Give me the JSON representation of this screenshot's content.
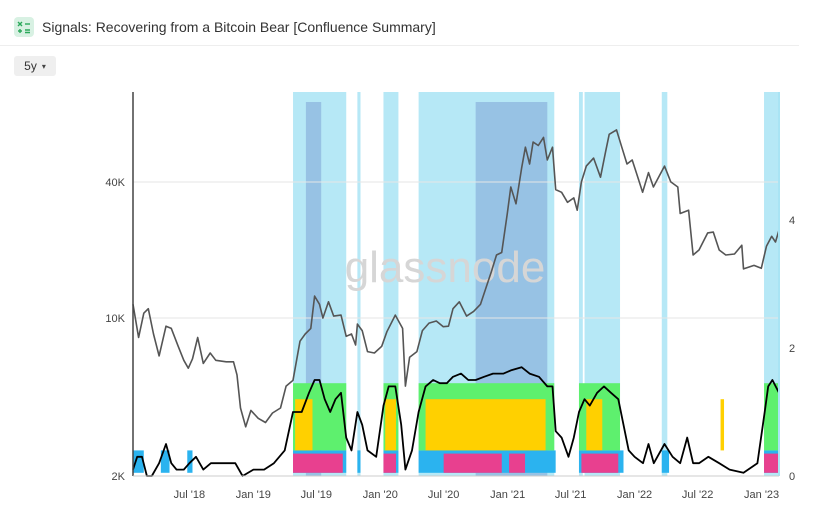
{
  "header": {
    "title": "Signals: Recovering from a Bitcoin Bear [Confluence Summary]",
    "icon": "signals-icon"
  },
  "controls": {
    "range_label": "5y",
    "range_caret": "▾"
  },
  "watermark": "glassnode",
  "chart_data": {
    "type": "line",
    "title": "",
    "x_range": [
      "2018-01-20",
      "2023-02-20"
    ],
    "left_axis": {
      "scale": "log",
      "ticks": [
        2000,
        10000,
        40000
      ],
      "tick_labels": [
        "2K",
        "10K",
        "40K"
      ],
      "range": [
        2000,
        100000
      ]
    },
    "right_axis": {
      "ticks": [
        0,
        2,
        4
      ],
      "tick_labels": [
        "0",
        "2",
        "4"
      ],
      "range": [
        0,
        6
      ]
    },
    "x_ticks": [
      {
        "date": "2018-07-01",
        "label": "Jul '18"
      },
      {
        "date": "2019-01-01",
        "label": "Jan '19"
      },
      {
        "date": "2019-07-01",
        "label": "Jul '19"
      },
      {
        "date": "2020-01-01",
        "label": "Jan '20"
      },
      {
        "date": "2020-07-01",
        "label": "Jul '20"
      },
      {
        "date": "2021-01-01",
        "label": "Jan '21"
      },
      {
        "date": "2021-07-01",
        "label": "Jul '21"
      },
      {
        "date": "2022-01-01",
        "label": "Jan '22"
      },
      {
        "date": "2022-07-01",
        "label": "Jul '22"
      },
      {
        "date": "2023-01-01",
        "label": "Jan '23"
      }
    ],
    "colors": {
      "price_line": "#555555",
      "confluence_line": "#000000",
      "pos_regime": "#a9e4f4",
      "pos_strong": "#7ea3d6",
      "band_green": "#5ef06e",
      "band_yellow": "#ffd000",
      "band_blue": "#2bb3ef",
      "band_pink": "#e8408f"
    },
    "series": [
      {
        "axis": "left",
        "color": "#555555",
        "points": [
          [
            "2018-01-20",
            11500
          ],
          [
            "2018-02-05",
            8200
          ],
          [
            "2018-02-20",
            10500
          ],
          [
            "2018-03-05",
            11000
          ],
          [
            "2018-03-20",
            8500
          ],
          [
            "2018-04-05",
            6800
          ],
          [
            "2018-04-25",
            9200
          ],
          [
            "2018-05-10",
            9000
          ],
          [
            "2018-05-30",
            7500
          ],
          [
            "2018-06-15",
            6500
          ],
          [
            "2018-06-28",
            6000
          ],
          [
            "2018-07-10",
            6600
          ],
          [
            "2018-07-25",
            8200
          ],
          [
            "2018-08-10",
            6300
          ],
          [
            "2018-08-30",
            7000
          ],
          [
            "2018-09-15",
            6500
          ],
          [
            "2018-10-15",
            6400
          ],
          [
            "2018-11-05",
            6400
          ],
          [
            "2018-11-15",
            5600
          ],
          [
            "2018-11-25",
            4000
          ],
          [
            "2018-12-10",
            3300
          ],
          [
            "2018-12-25",
            3900
          ],
          [
            "2019-01-15",
            3600
          ],
          [
            "2019-02-05",
            3450
          ],
          [
            "2019-02-25",
            3800
          ],
          [
            "2019-03-20",
            4000
          ],
          [
            "2019-04-05",
            5000
          ],
          [
            "2019-04-25",
            5300
          ],
          [
            "2019-05-15",
            7900
          ],
          [
            "2019-05-30",
            8500
          ],
          [
            "2019-06-15",
            9000
          ],
          [
            "2019-06-26",
            12500
          ],
          [
            "2019-07-10",
            11500
          ],
          [
            "2019-07-20",
            10000
          ],
          [
            "2019-08-05",
            11800
          ],
          [
            "2019-08-20",
            10200
          ],
          [
            "2019-09-10",
            10300
          ],
          [
            "2019-09-25",
            8300
          ],
          [
            "2019-10-10",
            8500
          ],
          [
            "2019-10-22",
            7600
          ],
          [
            "2019-10-27",
            9400
          ],
          [
            "2019-11-10",
            8800
          ],
          [
            "2019-11-25",
            7100
          ],
          [
            "2019-12-15",
            7000
          ],
          [
            "2020-01-05",
            7500
          ],
          [
            "2020-01-20",
            8700
          ],
          [
            "2020-02-13",
            10300
          ],
          [
            "2020-03-05",
            9000
          ],
          [
            "2020-03-13",
            5000
          ],
          [
            "2020-03-25",
            6700
          ],
          [
            "2020-04-15",
            7100
          ],
          [
            "2020-05-01",
            8800
          ],
          [
            "2020-05-20",
            9500
          ],
          [
            "2020-06-10",
            9700
          ],
          [
            "2020-06-30",
            9150
          ],
          [
            "2020-07-15",
            9200
          ],
          [
            "2020-07-28",
            11000
          ],
          [
            "2020-08-15",
            11800
          ],
          [
            "2020-09-05",
            10200
          ],
          [
            "2020-09-25",
            10700
          ],
          [
            "2020-10-15",
            11500
          ],
          [
            "2020-10-30",
            13500
          ],
          [
            "2020-11-15",
            16000
          ],
          [
            "2020-11-30",
            19000
          ],
          [
            "2020-12-15",
            19500
          ],
          [
            "2020-12-31",
            29000
          ],
          [
            "2021-01-10",
            38000
          ],
          [
            "2021-01-25",
            32000
          ],
          [
            "2021-02-10",
            46000
          ],
          [
            "2021-02-21",
            57000
          ],
          [
            "2021-03-05",
            48000
          ],
          [
            "2021-03-15",
            60000
          ],
          [
            "2021-03-30",
            58000
          ],
          [
            "2021-04-14",
            63000
          ],
          [
            "2021-04-25",
            50000
          ],
          [
            "2021-05-10",
            57000
          ],
          [
            "2021-05-19",
            37000
          ],
          [
            "2021-06-05",
            36000
          ],
          [
            "2021-06-22",
            32500
          ],
          [
            "2021-07-10",
            34000
          ],
          [
            "2021-07-20",
            30000
          ],
          [
            "2021-08-01",
            40000
          ],
          [
            "2021-08-15",
            47000
          ],
          [
            "2021-09-05",
            51000
          ],
          [
            "2021-09-25",
            42000
          ],
          [
            "2021-10-10",
            55000
          ],
          [
            "2021-10-20",
            65000
          ],
          [
            "2021-11-10",
            68000
          ],
          [
            "2021-11-25",
            57000
          ],
          [
            "2021-12-10",
            48000
          ],
          [
            "2021-12-25",
            50000
          ],
          [
            "2022-01-10",
            42000
          ],
          [
            "2022-01-24",
            36000
          ],
          [
            "2022-02-10",
            44000
          ],
          [
            "2022-02-24",
            38000
          ],
          [
            "2022-03-28",
            47000
          ],
          [
            "2022-04-15",
            40000
          ],
          [
            "2022-05-05",
            38000
          ],
          [
            "2022-05-12",
            29000
          ],
          [
            "2022-06-05",
            30000
          ],
          [
            "2022-06-18",
            19000
          ],
          [
            "2022-07-05",
            20000
          ],
          [
            "2022-07-30",
            23800
          ],
          [
            "2022-08-15",
            24000
          ],
          [
            "2022-09-01",
            20000
          ],
          [
            "2022-09-20",
            19000
          ],
          [
            "2022-10-15",
            19200
          ],
          [
            "2022-11-05",
            21000
          ],
          [
            "2022-11-10",
            16500
          ],
          [
            "2022-12-10",
            17100
          ],
          [
            "2022-12-31",
            16600
          ],
          [
            "2023-01-15",
            20800
          ],
          [
            "2023-01-30",
            23000
          ],
          [
            "2023-02-10",
            21700
          ],
          [
            "2023-02-20",
            24500
          ]
        ]
      },
      {
        "axis": "right",
        "color": "#000000",
        "points": [
          [
            "2018-01-20",
            0.1
          ],
          [
            "2018-02-01",
            0.3
          ],
          [
            "2018-02-15",
            0.3
          ],
          [
            "2018-03-01",
            0
          ],
          [
            "2018-03-15",
            0
          ],
          [
            "2018-04-05",
            0.2
          ],
          [
            "2018-04-25",
            0.5
          ],
          [
            "2018-05-10",
            0.2
          ],
          [
            "2018-05-25",
            0.1
          ],
          [
            "2018-06-15",
            0.1
          ],
          [
            "2018-07-01",
            0.2
          ],
          [
            "2018-07-20",
            0.3
          ],
          [
            "2018-08-10",
            0.1
          ],
          [
            "2018-09-01",
            0.2
          ],
          [
            "2018-10-01",
            0.2
          ],
          [
            "2018-11-10",
            0.2
          ],
          [
            "2018-12-01",
            0
          ],
          [
            "2019-01-01",
            0.1
          ],
          [
            "2019-02-01",
            0.1
          ],
          [
            "2019-03-01",
            0.2
          ],
          [
            "2019-04-01",
            0.4
          ],
          [
            "2019-04-25",
            1
          ],
          [
            "2019-05-20",
            1
          ],
          [
            "2019-06-10",
            1.3
          ],
          [
            "2019-06-26",
            1.5
          ],
          [
            "2019-07-10",
            1.5
          ],
          [
            "2019-07-25",
            1.2
          ],
          [
            "2019-08-10",
            1
          ],
          [
            "2019-08-25",
            1.2
          ],
          [
            "2019-09-10",
            1.3
          ],
          [
            "2019-09-25",
            0.6
          ],
          [
            "2019-10-10",
            0.4
          ],
          [
            "2019-10-27",
            1
          ],
          [
            "2019-11-10",
            0.8
          ],
          [
            "2019-11-25",
            0.4
          ],
          [
            "2019-12-20",
            0.3
          ],
          [
            "2020-01-10",
            1.1
          ],
          [
            "2020-01-25",
            1.4
          ],
          [
            "2020-02-13",
            1.4
          ],
          [
            "2020-03-01",
            0.8
          ],
          [
            "2020-03-13",
            0.1
          ],
          [
            "2020-04-01",
            0.4
          ],
          [
            "2020-04-20",
            1
          ],
          [
            "2020-05-10",
            1.4
          ],
          [
            "2020-06-01",
            1.5
          ],
          [
            "2020-06-20",
            1.45
          ],
          [
            "2020-07-10",
            1.45
          ],
          [
            "2020-07-28",
            1.55
          ],
          [
            "2020-08-20",
            1.6
          ],
          [
            "2020-09-10",
            1.5
          ],
          [
            "2020-10-01",
            1.5
          ],
          [
            "2020-10-25",
            1.55
          ],
          [
            "2020-11-20",
            1.6
          ],
          [
            "2020-12-20",
            1.6
          ],
          [
            "2021-01-10",
            1.65
          ],
          [
            "2021-02-10",
            1.7
          ],
          [
            "2021-03-05",
            1.6
          ],
          [
            "2021-04-01",
            1.55
          ],
          [
            "2021-04-25",
            1.4
          ],
          [
            "2021-05-10",
            1.4
          ],
          [
            "2021-05-19",
            0.7
          ],
          [
            "2021-06-05",
            0.6
          ],
          [
            "2021-06-25",
            0.3
          ],
          [
            "2021-07-10",
            0.6
          ],
          [
            "2021-07-25",
            1
          ],
          [
            "2021-08-10",
            1.2
          ],
          [
            "2021-08-25",
            1.1
          ],
          [
            "2021-09-15",
            1.3
          ],
          [
            "2021-10-05",
            1.4
          ],
          [
            "2021-10-25",
            1.3
          ],
          [
            "2021-11-15",
            1.2
          ],
          [
            "2021-11-30",
            0.8
          ],
          [
            "2021-12-15",
            0.4
          ],
          [
            "2022-01-01",
            0.3
          ],
          [
            "2022-01-25",
            0.2
          ],
          [
            "2022-02-10",
            0.5
          ],
          [
            "2022-02-25",
            0.2
          ],
          [
            "2022-03-28",
            0.5
          ],
          [
            "2022-04-20",
            0.3
          ],
          [
            "2022-05-12",
            0.2
          ],
          [
            "2022-06-01",
            0.6
          ],
          [
            "2022-06-18",
            0.2
          ],
          [
            "2022-07-05",
            0.2
          ],
          [
            "2022-08-01",
            0.3
          ],
          [
            "2022-09-01",
            0.2
          ],
          [
            "2022-10-01",
            0.1
          ],
          [
            "2022-11-10",
            0.05
          ],
          [
            "2022-12-20",
            0.2
          ],
          [
            "2023-01-10",
            1
          ],
          [
            "2023-01-20",
            1.4
          ],
          [
            "2023-02-01",
            1.5
          ],
          [
            "2023-02-20",
            1.3
          ]
        ]
      }
    ],
    "regions": [
      {
        "kind": "pos_regime",
        "start": "2019-04-25",
        "end": "2019-09-25"
      },
      {
        "kind": "pos_strong",
        "start": "2019-06-01",
        "end": "2019-07-15"
      },
      {
        "kind": "pos_regime",
        "start": "2019-10-27",
        "end": "2019-11-05"
      },
      {
        "kind": "pos_regime",
        "start": "2020-01-10",
        "end": "2020-02-22"
      },
      {
        "kind": "pos_regime",
        "start": "2020-04-20",
        "end": "2021-05-15"
      },
      {
        "kind": "pos_strong",
        "start": "2020-10-01",
        "end": "2021-04-25"
      },
      {
        "kind": "pos_regime",
        "start": "2021-07-25",
        "end": "2021-08-05"
      },
      {
        "kind": "pos_regime",
        "start": "2021-08-10",
        "end": "2021-11-20"
      },
      {
        "kind": "pos_regime",
        "start": "2022-03-20",
        "end": "2022-04-05"
      },
      {
        "kind": "pos_regime",
        "start": "2023-01-08",
        "end": "2023-02-20"
      }
    ],
    "bands": [
      {
        "color": "band_blue",
        "y0": 0.05,
        "y1": 0.4,
        "ranges": [
          [
            "2018-01-20",
            "2018-02-20"
          ],
          [
            "2018-04-10",
            "2018-05-05"
          ],
          [
            "2018-06-25",
            "2018-07-10"
          ],
          [
            "2019-04-25",
            "2019-09-25"
          ],
          [
            "2019-10-27",
            "2019-11-05"
          ],
          [
            "2020-01-10",
            "2020-02-22"
          ],
          [
            "2020-04-20",
            "2021-05-19"
          ],
          [
            "2021-07-25",
            "2021-11-30"
          ],
          [
            "2022-03-20",
            "2022-04-10"
          ],
          [
            "2023-01-08",
            "2023-02-20"
          ]
        ]
      },
      {
        "color": "band_green",
        "y0": 0.4,
        "y1": 1.45,
        "ranges": [
          [
            "2019-04-25",
            "2019-09-25"
          ],
          [
            "2020-01-10",
            "2020-02-22"
          ],
          [
            "2020-04-20",
            "2021-05-15"
          ],
          [
            "2021-07-25",
            "2021-11-20"
          ],
          [
            "2023-01-08",
            "2023-02-20"
          ]
        ]
      },
      {
        "color": "band_yellow",
        "y0": 0.4,
        "y1": 1.2,
        "ranges": [
          [
            "2019-05-01",
            "2019-06-20"
          ],
          [
            "2020-01-15",
            "2020-02-15"
          ],
          [
            "2020-05-10",
            "2021-04-20"
          ],
          [
            "2021-08-15",
            "2021-09-30"
          ],
          [
            "2022-09-05",
            "2022-09-15"
          ]
        ]
      },
      {
        "color": "band_pink",
        "y0": 0.05,
        "y1": 0.35,
        "ranges": [
          [
            "2019-04-25",
            "2019-09-15"
          ],
          [
            "2020-01-10",
            "2020-02-15"
          ],
          [
            "2020-07-01",
            "2020-12-15"
          ],
          [
            "2021-01-05",
            "2021-02-20"
          ],
          [
            "2021-08-01",
            "2021-11-15"
          ],
          [
            "2023-01-08",
            "2023-02-20"
          ]
        ]
      }
    ]
  }
}
